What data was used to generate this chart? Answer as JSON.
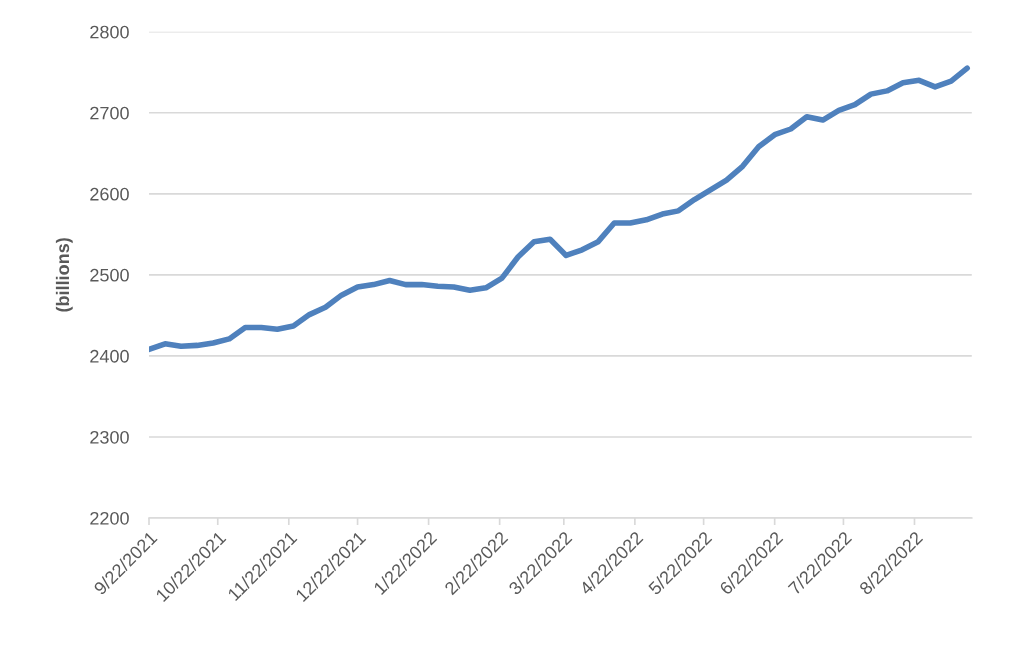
{
  "chart_data": {
    "type": "line",
    "ylabel": "(billions)",
    "x": [
      "2021-09-22",
      "2021-09-29",
      "2021-10-06",
      "2021-10-13",
      "2021-10-20",
      "2021-10-27",
      "2021-11-03",
      "2021-11-10",
      "2021-11-17",
      "2021-11-24",
      "2021-12-01",
      "2021-12-08",
      "2021-12-15",
      "2021-12-22",
      "2021-12-29",
      "2022-01-05",
      "2022-01-12",
      "2022-01-19",
      "2022-01-26",
      "2022-02-02",
      "2022-02-09",
      "2022-02-16",
      "2022-02-23",
      "2022-03-02",
      "2022-03-09",
      "2022-03-16",
      "2022-03-23",
      "2022-03-30",
      "2022-04-06",
      "2022-04-13",
      "2022-04-20",
      "2022-04-27",
      "2022-05-04",
      "2022-05-11",
      "2022-05-18",
      "2022-05-25",
      "2022-06-01",
      "2022-06-08",
      "2022-06-15",
      "2022-06-22",
      "2022-06-29",
      "2022-07-06",
      "2022-07-13",
      "2022-07-20",
      "2022-07-27",
      "2022-08-03",
      "2022-08-10",
      "2022-08-17",
      "2022-08-24",
      "2022-08-31",
      "2022-09-07",
      "2022-09-14"
    ],
    "series": [
      {
        "color": "#4f81bd",
        "values": [
          2408,
          2415,
          2412,
          2413,
          2416,
          2421,
          2435,
          2435,
          2433,
          2437,
          2451,
          2460,
          2475,
          2485,
          2488,
          2493,
          2488,
          2488,
          2486,
          2485,
          2481,
          2484,
          2496,
          2522,
          2541,
          2544,
          2524,
          2531,
          2541,
          2564,
          2564,
          2568,
          2575,
          2579,
          2593,
          2605,
          2617,
          2634,
          2658,
          2673,
          2680,
          2695,
          2691,
          2703,
          2710,
          2723,
          2727,
          2737,
          2740,
          2732,
          2739,
          2755
        ]
      }
    ],
    "xlim": [
      "2021-09-22",
      "2022-09-16"
    ],
    "xticks": [
      {
        "value": "2021-09-22",
        "label": "9/22/2021"
      },
      {
        "value": "2021-10-22",
        "label": "10/22/2021"
      },
      {
        "value": "2021-11-22",
        "label": "11/22/2021"
      },
      {
        "value": "2021-12-22",
        "label": "12/22/2021"
      },
      {
        "value": "2022-01-22",
        "label": "1/22/2022"
      },
      {
        "value": "2022-02-22",
        "label": "2/22/2022"
      },
      {
        "value": "2022-03-22",
        "label": "3/22/2022"
      },
      {
        "value": "2022-04-22",
        "label": "4/22/2022"
      },
      {
        "value": "2022-05-22",
        "label": "5/22/2022"
      },
      {
        "value": "2022-06-22",
        "label": "6/22/2022"
      },
      {
        "value": "2022-07-22",
        "label": "7/22/2022"
      },
      {
        "value": "2022-08-22",
        "label": "8/22/2022"
      }
    ],
    "ylim": [
      2200,
      2800
    ],
    "yticks": [
      2200,
      2300,
      2400,
      2500,
      2600,
      2700,
      2800
    ],
    "grid": "y",
    "legend": false,
    "marker": "none",
    "line_style": "solid"
  }
}
